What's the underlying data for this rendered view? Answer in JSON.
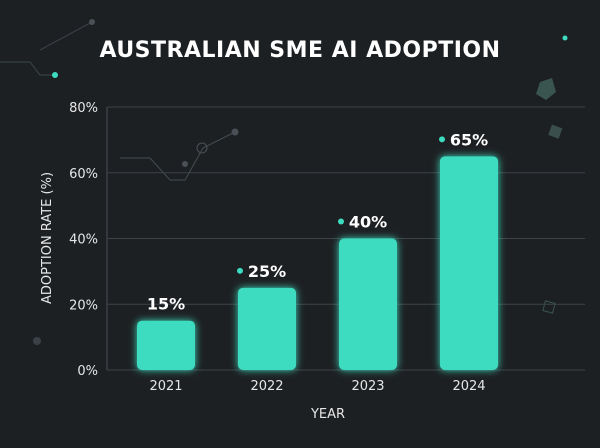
{
  "chart_data": {
    "type": "bar",
    "title": "AUSTRALIAN SME AI ADOPTION",
    "xlabel": "YEAR",
    "ylabel": "ADOPTION RATE (%)",
    "categories": [
      "2021",
      "2022",
      "2023",
      "2024"
    ],
    "values": [
      15,
      25,
      40,
      65
    ],
    "data_labels": [
      "15%",
      "25%",
      "40%",
      "65%"
    ],
    "ylim": [
      0,
      80
    ],
    "yticks": [
      "0%",
      "20%",
      "40%",
      "60%",
      "80%"
    ],
    "grid": true,
    "bar_color": "#3ddcc0",
    "background": "#1d2023"
  }
}
